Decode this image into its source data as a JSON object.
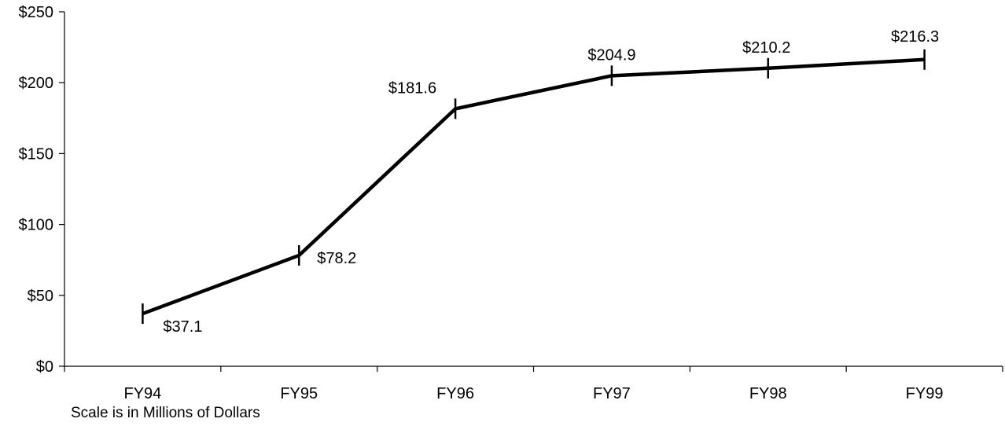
{
  "chart_data": {
    "type": "line",
    "title": "",
    "xlabel": "",
    "ylabel": "",
    "categories": [
      "FY94",
      "FY95",
      "FY96",
      "FY97",
      "FY98",
      "FY99"
    ],
    "series": [
      {
        "values": [
          37.1,
          78.2,
          181.6,
          204.9,
          210.2,
          216.3
        ],
        "labels": [
          "$37.1",
          "$78.2",
          "$181.6",
          "$204.9",
          "$210.2",
          "$216.3"
        ],
        "color": "#000000"
      }
    ],
    "ylim": [
      0,
      250
    ],
    "yticks": [
      0,
      50,
      100,
      150,
      200,
      250
    ],
    "ytick_labels": [
      "$0",
      "$50",
      "$100",
      "$150",
      "$200",
      "$250"
    ],
    "grid": false,
    "legend": "none",
    "note": "Scale is in Millions of Dollars"
  }
}
